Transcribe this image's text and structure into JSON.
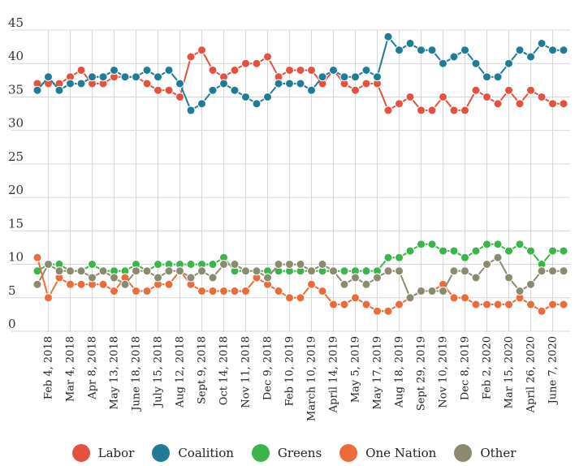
{
  "chart_data": {
    "type": "line",
    "title": "",
    "xlabel": "",
    "ylabel": "",
    "ylim": [
      0,
      45
    ],
    "yticks": [
      0,
      5,
      10,
      15,
      20,
      25,
      30,
      35,
      40,
      45
    ],
    "grid": true,
    "legend_position": "bottom",
    "n_points": 49,
    "xtick_labels": [
      "Feb 4, 2018",
      "Mar 4, 2018",
      "Apr 8, 2018",
      "May 13, 2018",
      "June 18, 2018",
      "July 15, 2018",
      "Aug 12, 2018",
      "Sept 9, 2018",
      "Oct 14, 2018",
      "Nov 11, 2018",
      "Dec 9, 2018",
      "Feb 10, 2019",
      "March 10, 2019",
      "April 14, 2019",
      "May 5, 2019",
      "May 17, 2019",
      "Aug 18, 2019",
      "Sept 29, 2019",
      "Nov 10, 2019",
      "Dec 8, 2019",
      "Feb 2, 2020",
      "Mar 15, 2020",
      "April 26, 2020",
      "June 7, 2020"
    ],
    "xtick_index": [
      1,
      3,
      5,
      7,
      9,
      11,
      13,
      15,
      17,
      19,
      21,
      23,
      25,
      27,
      29,
      31,
      33,
      35,
      37,
      39,
      41,
      43,
      45,
      47
    ],
    "series": [
      {
        "name": "Labor",
        "color": "#e4523f",
        "dash": "solid",
        "values": [
          37,
          37,
          37,
          38,
          39,
          37,
          37,
          38,
          38,
          38,
          37,
          36,
          36,
          35,
          41,
          42,
          39,
          38,
          39,
          40,
          40,
          41,
          38,
          39,
          39,
          39,
          37,
          39,
          37,
          36,
          37,
          37,
          33,
          34,
          35,
          33,
          33,
          35,
          33,
          33,
          36,
          35,
          34,
          36,
          34,
          36,
          35,
          34,
          34
        ]
      },
      {
        "name": "Coalition",
        "color": "#1f7b96",
        "dash": "solid",
        "values": [
          36,
          38,
          36,
          37,
          37,
          38,
          38,
          39,
          38,
          38,
          39,
          38,
          39,
          37,
          33,
          34,
          36,
          37,
          36,
          35,
          34,
          35,
          37,
          37,
          37,
          36,
          38,
          39,
          38,
          38,
          39,
          38,
          44,
          42,
          43,
          42,
          42,
          40,
          41,
          42,
          40,
          38,
          38,
          40,
          42,
          41,
          43,
          42,
          42
        ]
      },
      {
        "name": "Greens",
        "color": "#39b54a",
        "dash": "solid",
        "values": [
          9,
          10,
          10,
          9,
          9,
          10,
          9,
          9,
          9,
          10,
          9,
          10,
          10,
          10,
          10,
          10,
          10,
          11,
          9,
          9,
          9,
          9,
          9,
          9,
          9,
          9,
          9,
          9,
          9,
          9,
          9,
          9,
          11,
          11,
          12,
          13,
          13,
          12,
          12,
          11,
          12,
          13,
          13,
          12,
          13,
          12,
          10,
          12,
          12
        ]
      },
      {
        "name": "One Nation",
        "color": "#eb6b3a",
        "dash": "solid",
        "values": [
          11,
          5,
          8,
          7,
          7,
          7,
          7,
          6,
          8,
          6,
          6,
          7,
          7,
          9,
          7,
          6,
          6,
          6,
          6,
          6,
          8,
          7,
          6,
          5,
          5,
          7,
          6,
          4,
          4,
          5,
          4,
          3,
          3,
          4,
          5,
          6,
          6,
          7,
          5,
          5,
          4,
          4,
          4,
          4,
          5,
          4,
          3,
          4,
          4
        ]
      },
      {
        "name": "Other",
        "color": "#8c8a6e",
        "dash": "solid",
        "values": [
          7,
          10,
          9,
          9,
          9,
          8,
          9,
          8,
          7,
          9,
          9,
          8,
          9,
          9,
          8,
          9,
          8,
          10,
          10,
          9,
          9,
          8,
          10,
          10,
          10,
          9,
          10,
          9,
          7,
          8,
          7,
          8,
          9,
          9,
          5,
          6,
          6,
          6,
          9,
          9,
          8,
          10,
          11,
          8,
          6,
          7,
          9,
          9,
          9
        ]
      }
    ]
  },
  "legend": [
    {
      "label": "Labor",
      "color": "#e4523f"
    },
    {
      "label": "Coalition",
      "color": "#1f7b96"
    },
    {
      "label": "Greens",
      "color": "#39b54a"
    },
    {
      "label": "One Nation",
      "color": "#eb6b3a"
    },
    {
      "label": "Other",
      "color": "#8c8a6e"
    }
  ]
}
